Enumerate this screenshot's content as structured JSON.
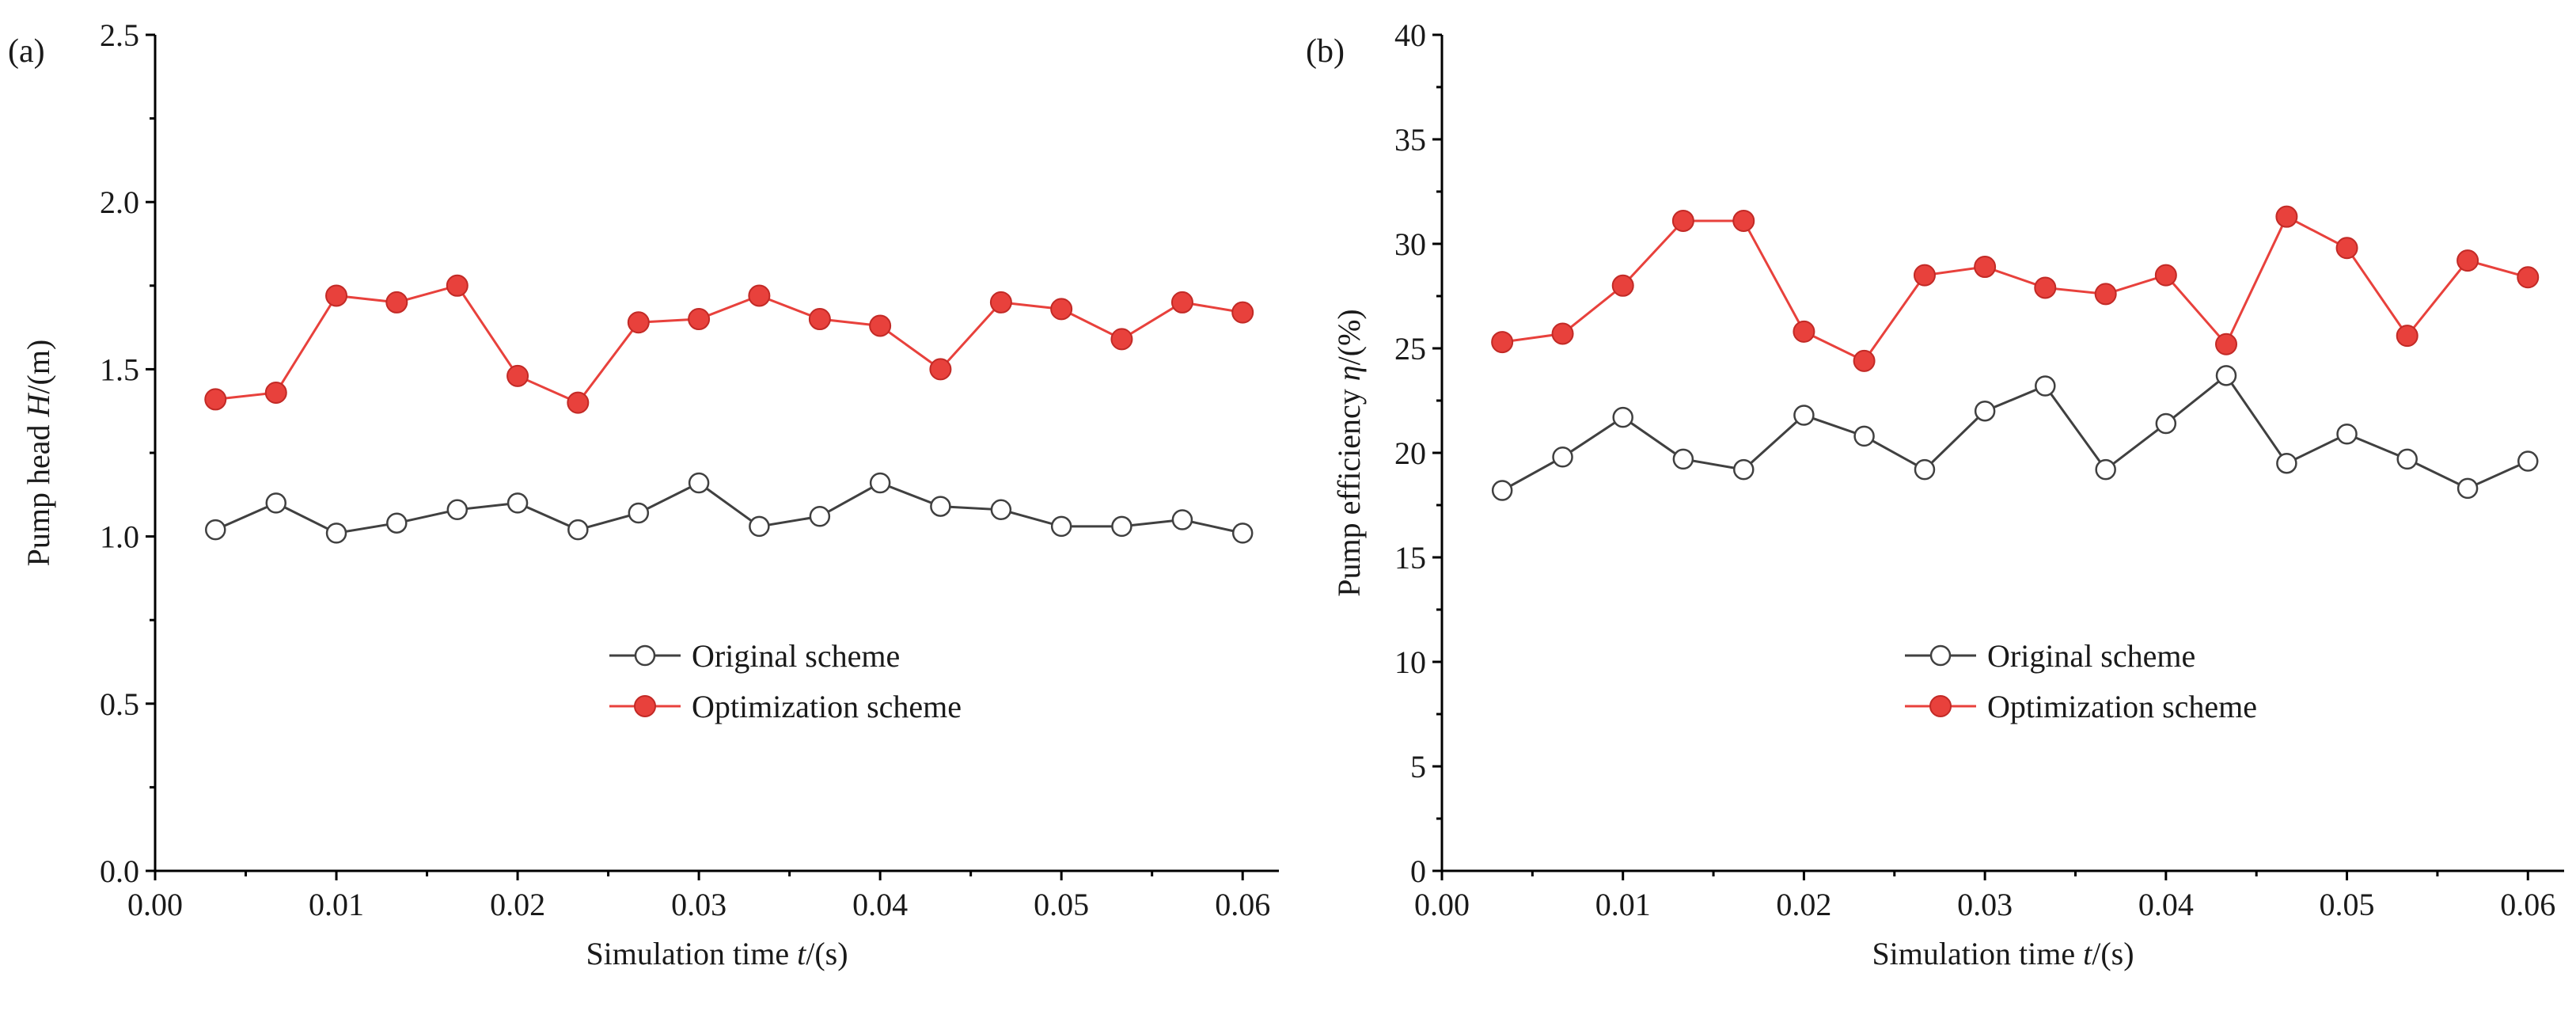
{
  "chart_data": [
    {
      "type": "line",
      "panel_label": "(a)",
      "title": "",
      "xlabel": {
        "prefix": "Simulation time ",
        "var": "t",
        "suffix": "/(s)"
      },
      "ylabel": {
        "prefix": "Pump head ",
        "var": "H",
        "suffix": "/(m)"
      },
      "xlim": [
        0.0,
        0.062
      ],
      "ylim": [
        0.0,
        2.5
      ],
      "xticks": [
        "0.00",
        "0.01",
        "0.02",
        "0.03",
        "0.04",
        "0.05",
        "0.06"
      ],
      "xtick_values": [
        0.0,
        0.01,
        0.02,
        0.03,
        0.04,
        0.05,
        0.06
      ],
      "yticks": [
        "0.0",
        "0.5",
        "1.0",
        "1.5",
        "2.0",
        "2.5"
      ],
      "ytick_values": [
        0.0,
        0.5,
        1.0,
        1.5,
        2.0,
        2.5
      ],
      "x": [
        0.00333,
        0.00667,
        0.01,
        0.01333,
        0.01667,
        0.02,
        0.02333,
        0.02667,
        0.03,
        0.03333,
        0.03667,
        0.04,
        0.04333,
        0.04667,
        0.05,
        0.05333,
        0.05667,
        0.06
      ],
      "series": [
        {
          "name": "Original scheme",
          "style": "open",
          "line_color": "#404040",
          "marker_color": "#ffffff",
          "values": [
            1.02,
            1.1,
            1.01,
            1.04,
            1.08,
            1.1,
            1.02,
            1.07,
            1.16,
            1.03,
            1.06,
            1.16,
            1.09,
            1.08,
            1.03,
            1.03,
            1.05,
            1.01
          ]
        },
        {
          "name": "Optimization scheme",
          "style": "filled",
          "line_color": "#e8413c",
          "marker_color": "#e8413c",
          "values": [
            1.41,
            1.43,
            1.72,
            1.7,
            1.75,
            1.48,
            1.4,
            1.64,
            1.65,
            1.72,
            1.65,
            1.63,
            1.5,
            1.7,
            1.68,
            1.59,
            1.7,
            1.67
          ]
        }
      ],
      "legend_position": "lower-right"
    },
    {
      "type": "line",
      "panel_label": "(b)",
      "title": "",
      "xlabel": {
        "prefix": "Simulation time ",
        "var": "t",
        "suffix": "/(s)"
      },
      "ylabel": {
        "prefix": "Pump efficiency ",
        "var": "η",
        "suffix": "/(%)"
      },
      "xlim": [
        0.0,
        0.062
      ],
      "ylim": [
        0,
        40
      ],
      "xticks": [
        "0.00",
        "0.01",
        "0.02",
        "0.03",
        "0.04",
        "0.05",
        "0.06"
      ],
      "xtick_values": [
        0.0,
        0.01,
        0.02,
        0.03,
        0.04,
        0.05,
        0.06
      ],
      "yticks": [
        "0",
        "5",
        "10",
        "15",
        "20",
        "25",
        "30",
        "35",
        "40"
      ],
      "ytick_values": [
        0,
        5,
        10,
        15,
        20,
        25,
        30,
        35,
        40
      ],
      "x": [
        0.00333,
        0.00667,
        0.01,
        0.01333,
        0.01667,
        0.02,
        0.02333,
        0.02667,
        0.03,
        0.03333,
        0.03667,
        0.04,
        0.04333,
        0.04667,
        0.05,
        0.05333,
        0.05667,
        0.06
      ],
      "series": [
        {
          "name": "Original scheme",
          "style": "open",
          "line_color": "#404040",
          "marker_color": "#ffffff",
          "values": [
            18.2,
            19.8,
            21.7,
            19.7,
            19.2,
            21.8,
            20.8,
            19.2,
            22.0,
            23.2,
            19.2,
            21.4,
            23.7,
            19.5,
            20.9,
            19.7,
            18.3,
            19.6
          ]
        },
        {
          "name": "Optimization scheme",
          "style": "filled",
          "line_color": "#e8413c",
          "marker_color": "#e8413c",
          "values": [
            25.3,
            25.7,
            28.0,
            31.1,
            31.1,
            25.8,
            24.4,
            28.5,
            28.9,
            27.9,
            27.6,
            28.5,
            25.2,
            31.3,
            29.8,
            25.6,
            29.2,
            28.4
          ]
        }
      ],
      "legend_position": "lower-right"
    }
  ]
}
